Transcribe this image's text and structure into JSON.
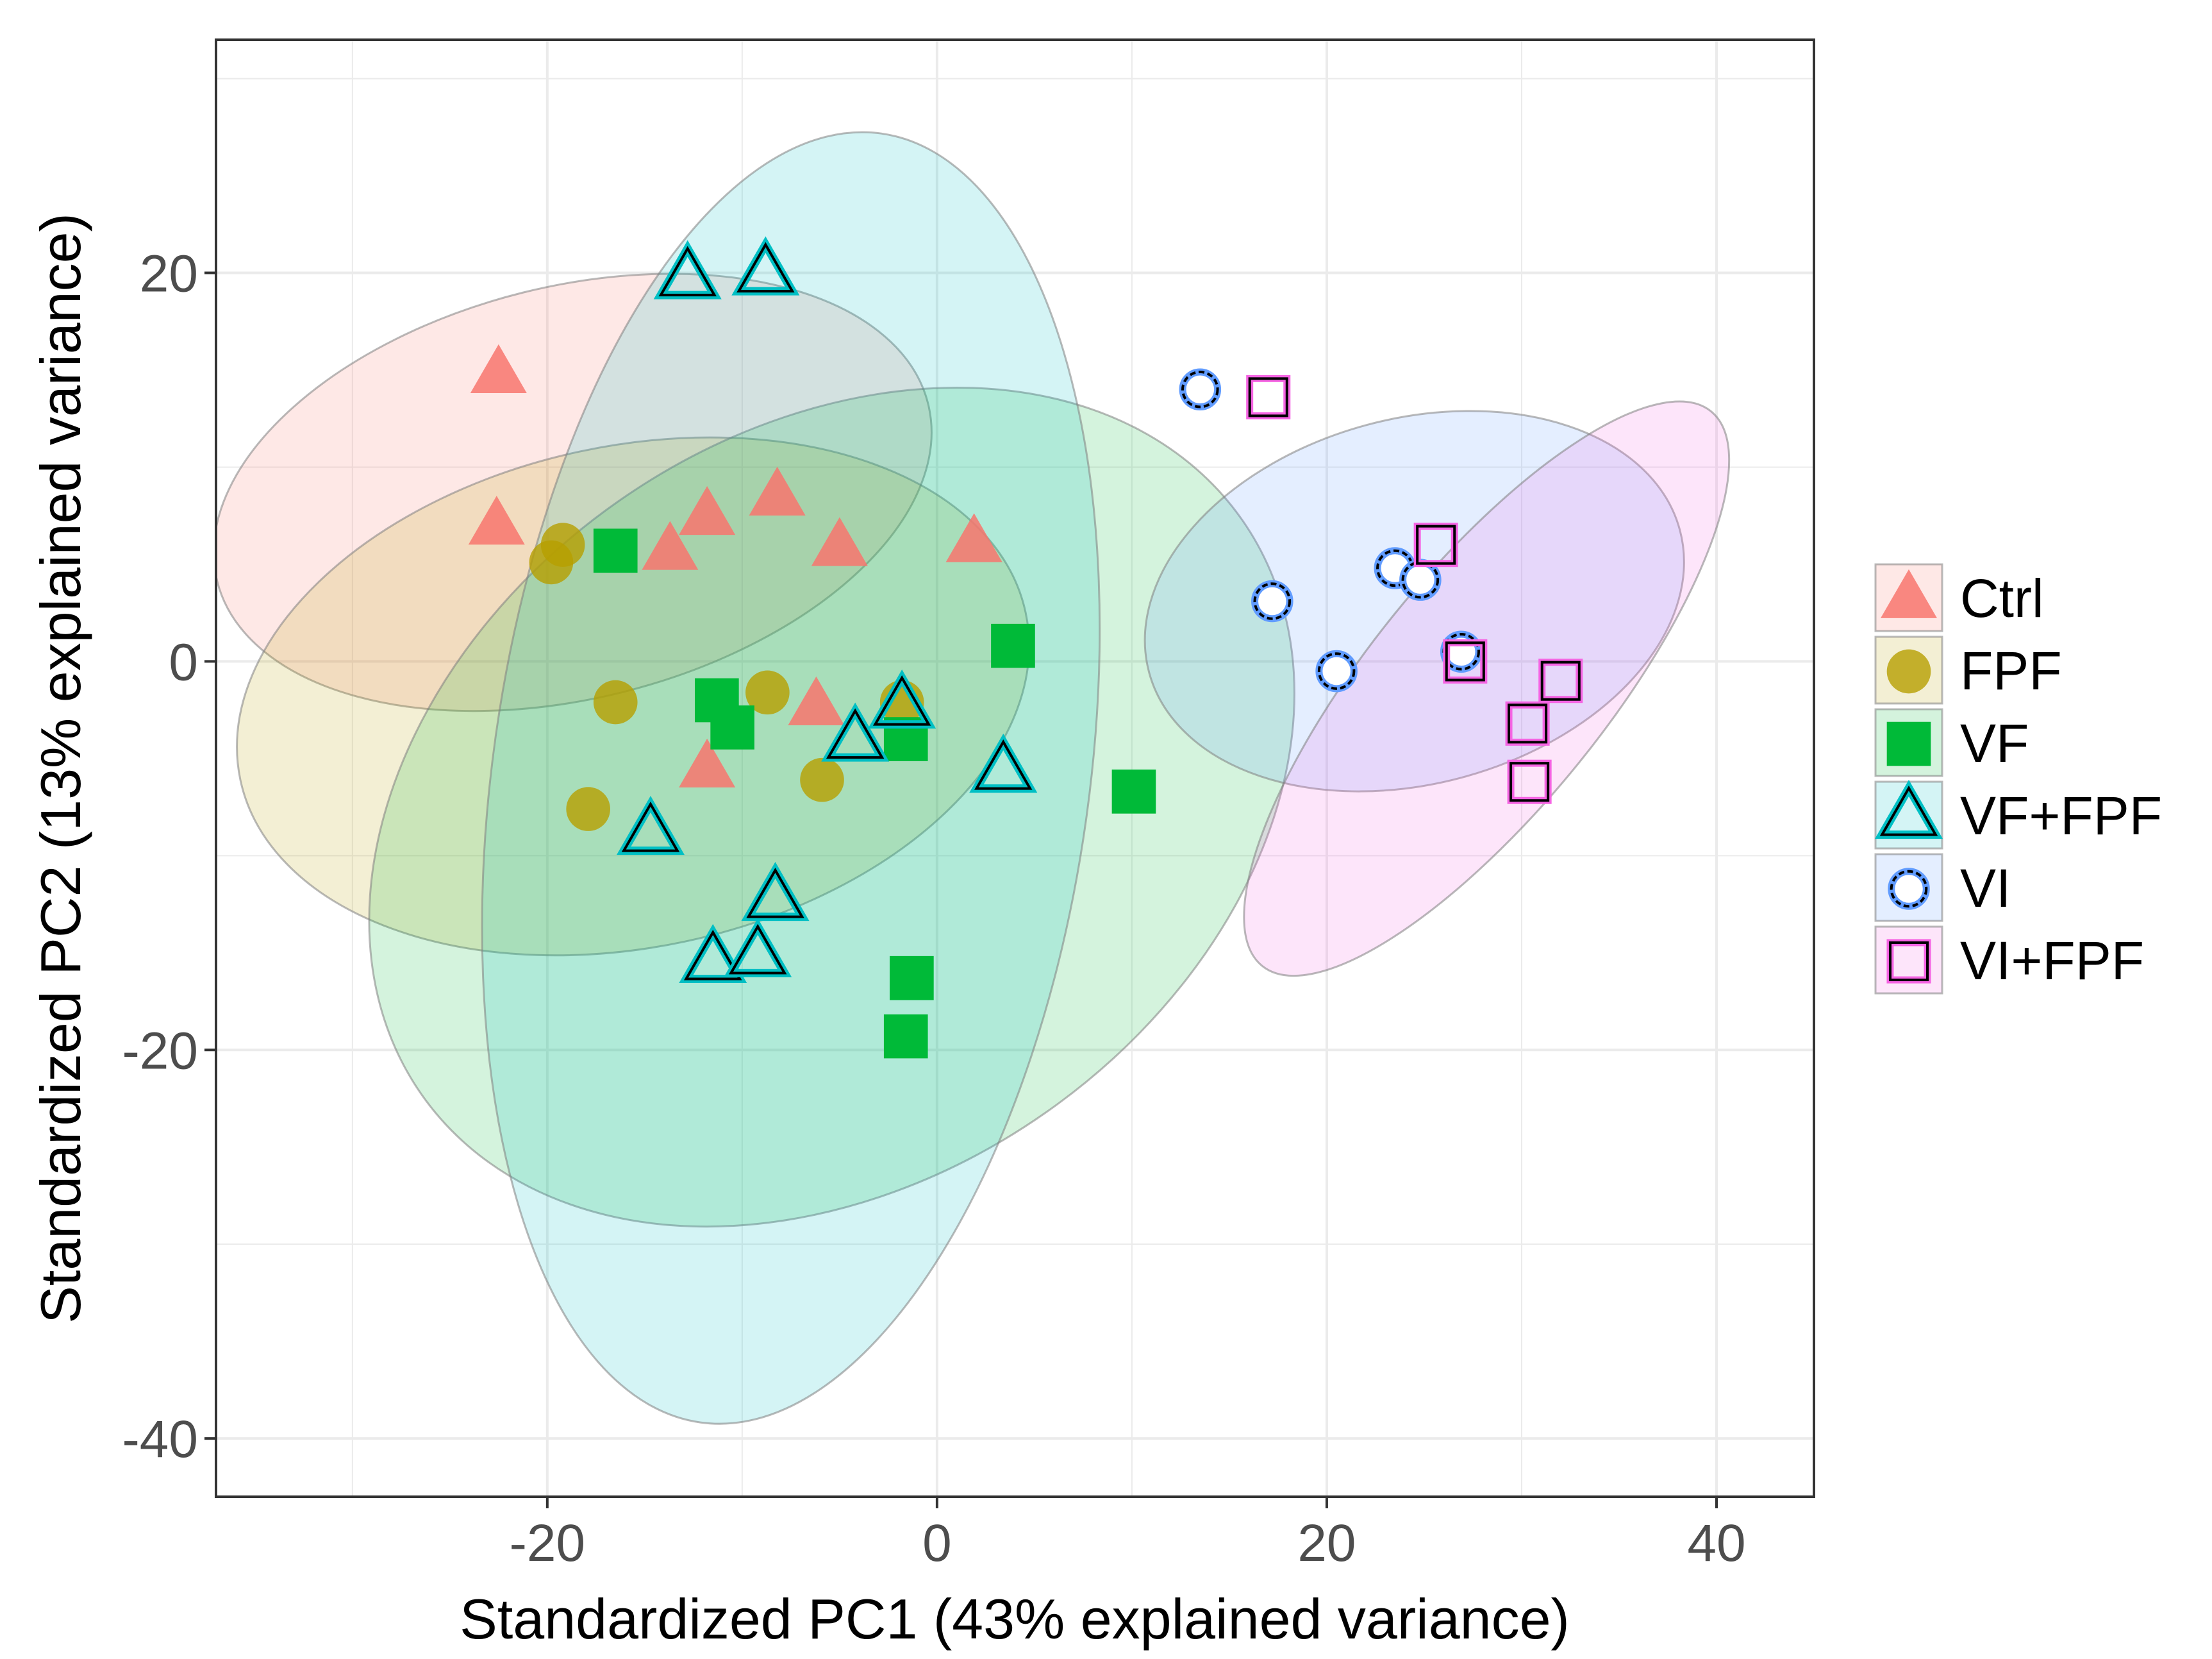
{
  "chart_data": {
    "type": "scatter",
    "title": "",
    "xlabel": "Standardized PC1 (43% explained variance)",
    "ylabel": "Standardized PC2 (13% explained variance)",
    "xlim": [
      -37,
      45
    ],
    "ylim": [
      -43,
      32
    ],
    "x_ticks": [
      -20,
      0,
      20,
      40
    ],
    "y_ticks": [
      20,
      0,
      -20,
      -40
    ],
    "x_tick_labels": [
      "-20",
      "0",
      "20",
      "40"
    ],
    "y_tick_labels": [
      "20",
      "0",
      "-20",
      "-40"
    ],
    "grid": true,
    "legend_position": "right",
    "series": [
      {
        "name": "Ctrl",
        "shape": "triangle-filled",
        "color": "#f8766d",
        "ellipse": {
          "cx": -18.7,
          "cy": 8.7,
          "rx": 18.8,
          "ry": 10.6,
          "angle": -14
        },
        "points": [
          [
            -22.5,
            14.8
          ],
          [
            -22.6,
            7.0
          ],
          [
            -11.8,
            7.5
          ],
          [
            -13.7,
            5.7
          ],
          [
            -8.2,
            8.5
          ],
          [
            -5.0,
            5.9
          ],
          [
            1.9,
            6.1
          ],
          [
            -6.2,
            -2.3
          ],
          [
            -11.8,
            -5.5
          ]
        ]
      },
      {
        "name": "FPF",
        "shape": "circle-filled",
        "color": "#b79f00",
        "ellipse": {
          "cx": -15.6,
          "cy": -1.8,
          "rx": 20.6,
          "ry": 12.9,
          "angle": -12
        },
        "points": [
          [
            -19.2,
            6.0
          ],
          [
            -19.8,
            5.1
          ],
          [
            -16.5,
            -2.1
          ],
          [
            -8.7,
            -1.6
          ],
          [
            -1.8,
            -2.1
          ],
          [
            -5.9,
            -6.1
          ],
          [
            -17.9,
            -7.6
          ]
        ]
      },
      {
        "name": "VF",
        "shape": "square-filled",
        "color": "#00ba38",
        "ellipse": {
          "cx": -5.4,
          "cy": -7.5,
          "rx": 25.7,
          "ry": 19.2,
          "angle": -35
        },
        "points": [
          [
            -16.5,
            5.7
          ],
          [
            -11.3,
            -2.0
          ],
          [
            -10.5,
            -3.4
          ],
          [
            -1.6,
            -4.0
          ],
          [
            3.9,
            0.8
          ],
          [
            10.1,
            -6.7
          ],
          [
            -1.3,
            -16.3
          ],
          [
            -1.6,
            -19.3
          ]
        ]
      },
      {
        "name": "VF+FPF",
        "shape": "triangle-open",
        "color": "#00bfc4",
        "ellipse": {
          "cx": -7.5,
          "cy": -6.0,
          "rx": 15.3,
          "ry": 33.5,
          "angle": 8
        },
        "points": [
          [
            -12.8,
            19.8
          ],
          [
            -8.8,
            20.0
          ],
          [
            -1.8,
            -2.3
          ],
          [
            -4.2,
            -4.0
          ],
          [
            3.4,
            -5.6
          ],
          [
            -14.7,
            -8.8
          ],
          [
            -8.3,
            -12.2
          ],
          [
            -11.5,
            -15.4
          ],
          [
            -9.2,
            -15.1
          ]
        ]
      },
      {
        "name": "VI",
        "shape": "circle-open",
        "color": "#619cff",
        "ellipse": {
          "cx": 24.5,
          "cy": 3.1,
          "rx": 14.1,
          "ry": 9.4,
          "angle": -15
        },
        "points": [
          [
            13.5,
            14.0
          ],
          [
            17.2,
            3.1
          ],
          [
            20.5,
            -0.5
          ],
          [
            23.5,
            4.8
          ],
          [
            24.8,
            4.2
          ],
          [
            26.9,
            0.5
          ]
        ]
      },
      {
        "name": "VI+FPF",
        "shape": "square-open",
        "color": "#f564e3",
        "ellipse": {
          "cx": 28.2,
          "cy": -1.4,
          "rx": 18.3,
          "ry": 6.1,
          "angle": -51
        },
        "points": [
          [
            17.0,
            13.6
          ],
          [
            25.6,
            6.0
          ],
          [
            27.1,
            0.0
          ],
          [
            30.3,
            -3.2
          ],
          [
            32.0,
            -1.0
          ],
          [
            30.4,
            -6.2
          ]
        ]
      }
    ]
  }
}
